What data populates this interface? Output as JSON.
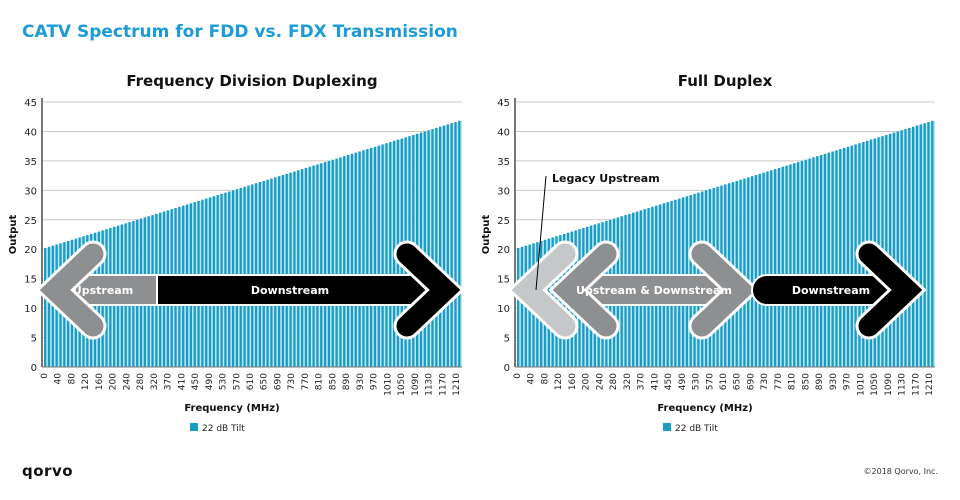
{
  "title": "CATV Spectrum for FDD vs. FDX Transmission",
  "logo_text": "qorvo",
  "copyright": "©2018 Qorvo, Inc.",
  "colors": {
    "bar": "#1a9cc4",
    "bar_light": "#bde6f2",
    "title": "#1b9bd7",
    "grid": "#c8c8c8",
    "arrow_dark": "#000000",
    "arrow_gray": "#8e8f91",
    "arrow_light": "#c6c7c9"
  },
  "chart_data": [
    {
      "type": "bar",
      "title": "Frequency Division Duplexing",
      "xlabel": "Frequency (MHz)",
      "ylabel": "Output",
      "ylim": [
        0,
        45
      ],
      "yticks": [
        0,
        5,
        10,
        15,
        20,
        25,
        30,
        35,
        40,
        45
      ],
      "xtick_labels": [
        "0",
        "40",
        "80",
        "120",
        "160",
        "200",
        "240",
        "280",
        "320",
        "370",
        "410",
        "450",
        "490",
        "530",
        "570",
        "610",
        "650",
        "690",
        "730",
        "770",
        "810",
        "850",
        "890",
        "930",
        "970",
        "1010",
        "1050",
        "1090",
        "1130",
        "1170",
        "1210"
      ],
      "grid": true,
      "legend": {
        "entries": [
          "22 dB Tilt"
        ],
        "placement": "bottom"
      },
      "series": [
        {
          "name": "22 dB Tilt",
          "values": [
            20.2,
            20.4,
            20.6,
            20.8,
            21.0,
            21.2,
            21.4,
            21.6,
            21.8,
            22.0,
            22.2,
            22.4,
            22.6,
            22.8,
            23.0,
            23.2,
            23.4,
            23.6,
            23.8,
            24.0,
            24.2,
            24.4,
            24.6,
            24.8,
            25.0,
            25.2,
            25.4,
            25.6,
            25.8,
            26.0,
            26.2,
            26.4,
            26.6,
            26.8,
            27.0,
            27.2,
            27.4,
            27.6,
            27.8,
            28.0,
            28.2,
            28.4,
            28.6,
            28.8,
            29.0,
            29.2,
            29.4,
            29.6,
            29.8,
            30.0,
            30.2,
            30.4,
            30.6,
            30.8,
            31.0,
            31.2,
            31.4,
            31.6,
            31.8,
            32.0,
            32.2,
            32.4,
            32.6,
            32.8,
            33.0,
            33.2,
            33.4,
            33.6,
            33.8,
            34.0,
            34.2,
            34.4,
            34.6,
            34.8,
            35.0,
            35.2,
            35.4,
            35.6,
            35.8,
            36.0,
            36.2,
            36.4,
            36.6,
            36.8,
            37.0,
            37.2,
            37.4,
            37.6,
            37.8,
            38.0,
            38.2,
            38.4,
            38.6,
            38.8,
            39.0,
            39.2,
            39.4,
            39.6,
            39.8,
            40.0,
            40.2,
            40.4,
            40.6,
            40.8,
            41.0,
            41.2,
            41.4,
            41.6,
            41.8
          ]
        }
      ],
      "annotations": [
        {
          "label": "Upstream",
          "kind": "arrow-left",
          "style": "gray",
          "from_mhz": 0,
          "to_mhz": 320
        },
        {
          "label": "Downstream",
          "kind": "arrow-right",
          "style": "dark",
          "from_mhz": 320,
          "to_mhz": 1210
        }
      ]
    },
    {
      "type": "bar",
      "title": "Full Duplex",
      "xlabel": "Frequency (MHz)",
      "ylabel": "Output",
      "ylim": [
        0,
        45
      ],
      "yticks": [
        0,
        5,
        10,
        15,
        20,
        25,
        30,
        35,
        40,
        45
      ],
      "xtick_labels": [
        "0",
        "40",
        "80",
        "120",
        "160",
        "200",
        "240",
        "280",
        "320",
        "370",
        "410",
        "450",
        "490",
        "530",
        "570",
        "610",
        "650",
        "690",
        "730",
        "770",
        "810",
        "850",
        "890",
        "930",
        "970",
        "1010",
        "1050",
        "1090",
        "1130",
        "1170",
        "1210"
      ],
      "grid": true,
      "legend": {
        "entries": [
          "22 dB Tilt"
        ],
        "placement": "bottom"
      },
      "series": [
        {
          "name": "22 dB Tilt",
          "values": "same"
        }
      ],
      "annotations": [
        {
          "label": "Legacy Upstream",
          "kind": "arrow-left",
          "style": "light",
          "callout": true
        },
        {
          "label": "Upstream & Downstream",
          "kind": "arrow-both",
          "style": "gray"
        },
        {
          "label": "Downstream",
          "kind": "arrow-right",
          "style": "dark"
        }
      ]
    }
  ]
}
